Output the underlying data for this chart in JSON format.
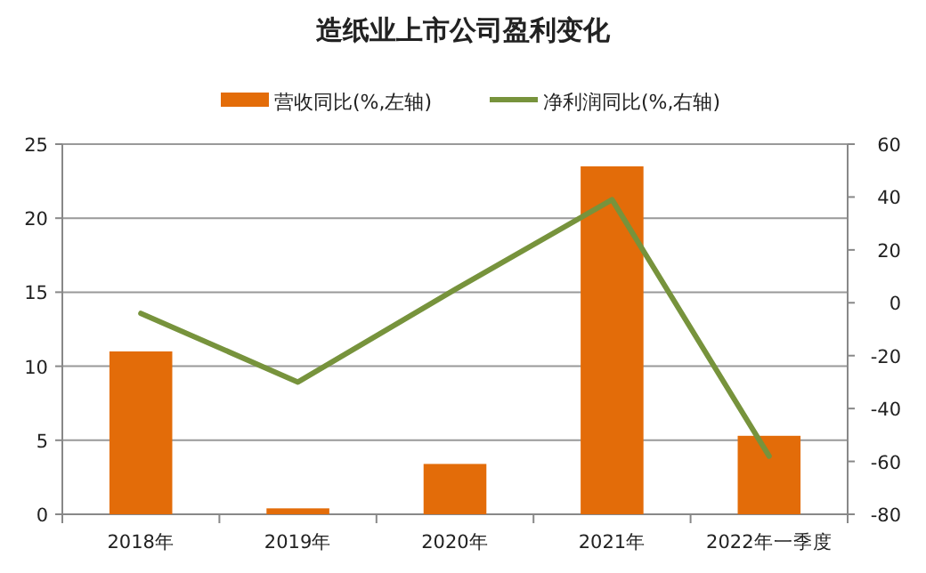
{
  "chart_data": {
    "type": "bar",
    "title": "造纸业上市公司盈利变化",
    "categories": [
      "2018年",
      "2019年",
      "2020年",
      "2021年",
      "2022年一季度"
    ],
    "series": [
      {
        "name": "营收同比(%,左轴)",
        "color": "#e36c09",
        "values": [
          11.0,
          0.4,
          3.4,
          23.5,
          5.3
        ]
      },
      {
        "name": "净利润同比(%,右轴)",
        "color": "#77933c",
        "type": "line",
        "axis": "y2",
        "values": [
          -4,
          -30,
          5,
          39,
          -58
        ]
      }
    ],
    "ylim": [
      0,
      25
    ],
    "yticks": [
      0,
      5,
      10,
      15,
      20,
      25
    ],
    "y2lim": [
      -80,
      60
    ],
    "y2ticks": [
      -80,
      -60,
      -40,
      -20,
      0,
      20,
      40,
      60
    ],
    "grid": "y",
    "legend": "top",
    "marker": "none"
  }
}
